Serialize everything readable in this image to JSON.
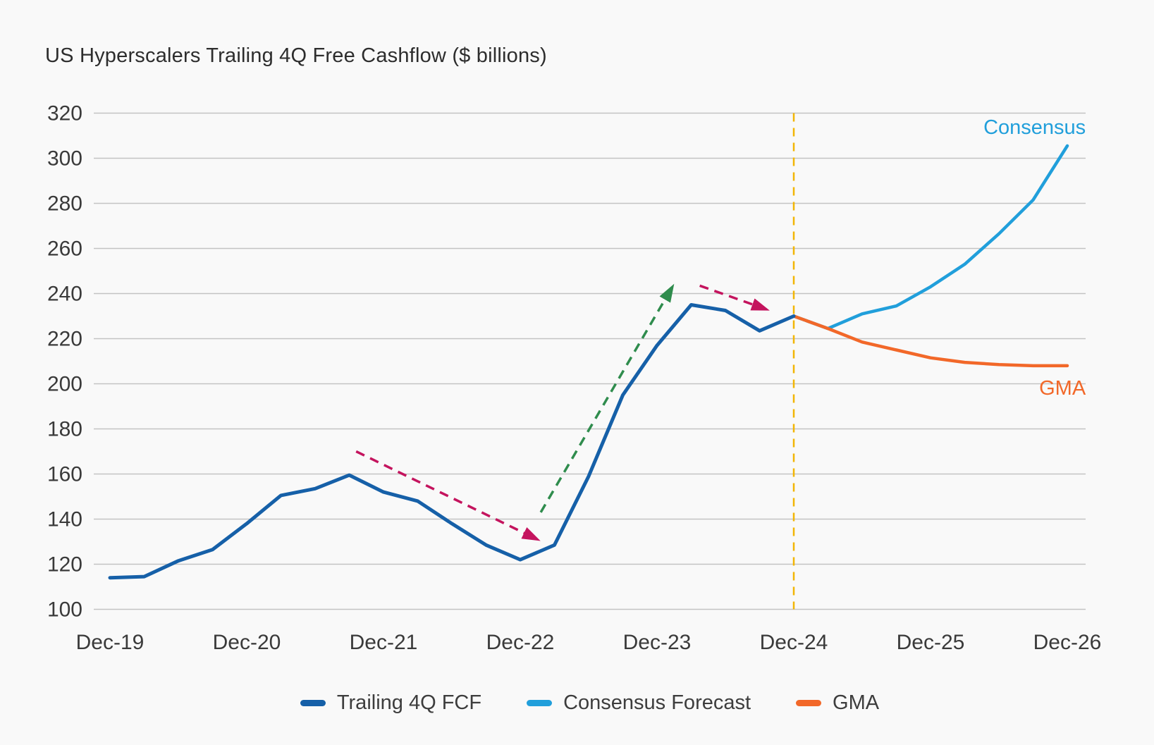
{
  "title": "US Hyperscalers Trailing 4Q Free Cashflow ($ billions)",
  "colors": {
    "background": "#f9f9f9",
    "gridline": "#c3c3c3",
    "axis_text": "#3a3a3a",
    "title_text": "#2d2d2d",
    "trailing_fcf": "#1660a8",
    "consensus": "#219fdb",
    "gma": "#f26829",
    "forecast_divider": "#f2b505",
    "arrow_down": "#c4145e",
    "arrow_up": "#2f8c4d"
  },
  "legend": {
    "items": [
      {
        "label": "Trailing 4Q FCF",
        "color_key": "trailing_fcf"
      },
      {
        "label": "Consensus Forecast",
        "color_key": "consensus"
      },
      {
        "label": "GMA",
        "color_key": "gma"
      }
    ]
  },
  "chart_data": {
    "type": "line",
    "title": "US Hyperscalers Trailing 4Q Free Cashflow ($ billions)",
    "xlabel": "",
    "ylabel": "$ billions",
    "ylim": [
      100,
      320
    ],
    "y_ticks": [
      100,
      120,
      140,
      160,
      180,
      200,
      220,
      240,
      260,
      280,
      300,
      320
    ],
    "x_tick_labels": [
      "Dec-19",
      "Dec-20",
      "Dec-21",
      "Dec-22",
      "Dec-23",
      "Dec-24",
      "Dec-25",
      "Dec-26"
    ],
    "quarters_per_tick": 4,
    "grid": "horizontal",
    "legend_position": "bottom",
    "series": [
      {
        "name": "Trailing 4Q FCF",
        "color_key": "trailing_fcf",
        "style": "solid",
        "stroke_width": 5,
        "start_quarter": 0,
        "quarters": [
          "Dec-19",
          "Mar-20",
          "Jun-20",
          "Sep-20",
          "Dec-20",
          "Mar-21",
          "Jun-21",
          "Sep-21",
          "Dec-21",
          "Mar-22",
          "Jun-22",
          "Sep-22",
          "Dec-22",
          "Mar-23",
          "Jun-23",
          "Sep-23",
          "Dec-23",
          "Mar-24",
          "Jun-24",
          "Sep-24",
          "Dec-24"
        ],
        "values": [
          114,
          114.5,
          121.5,
          126.5,
          138,
          150.5,
          153.5,
          159.5,
          152,
          148,
          138,
          128.5,
          122,
          128.5,
          159,
          195,
          217,
          235,
          232.5,
          223.5,
          230
        ]
      },
      {
        "name": "Consensus Forecast",
        "color_key": "consensus",
        "style": "solid",
        "stroke_width": 4.5,
        "start_quarter": 20,
        "quarters": [
          "Dec-24",
          "Mar-25",
          "Jun-25",
          "Sep-25",
          "Dec-25",
          "Mar-26",
          "Jun-26",
          "Sep-26",
          "Dec-26"
        ],
        "values": [
          230,
          224.5,
          231,
          234.5,
          243,
          253,
          266.5,
          281.5,
          305.5
        ]
      },
      {
        "name": "GMA",
        "color_key": "gma",
        "style": "solid",
        "stroke_width": 4.5,
        "start_quarter": 20,
        "quarters": [
          "Dec-24",
          "Mar-25",
          "Jun-25",
          "Sep-25",
          "Dec-25",
          "Mar-26",
          "Jun-26",
          "Sep-26",
          "Dec-26"
        ],
        "values": [
          230,
          224.5,
          218.5,
          215,
          211.5,
          209.5,
          208.5,
          208,
          208
        ]
      }
    ],
    "forecast_divider": {
      "quarter": 20,
      "label": "Dec-24",
      "style": "dashed"
    },
    "line_labels": [
      {
        "text": "Consensus",
        "color_key": "consensus",
        "anchor_quarter": 28.54,
        "value": 310.8,
        "align": "end"
      },
      {
        "text": "GMA",
        "color_key": "gma",
        "anchor_quarter": 28.54,
        "value": 195.2,
        "align": "end"
      }
    ],
    "arrows": [
      {
        "name": "decline-2022-arrow",
        "color_key": "arrow_down",
        "from_quarter": 7.2,
        "from_value": 170,
        "to_quarter": 12.5,
        "to_value": 131
      },
      {
        "name": "rebound-2023-arrow",
        "color_key": "arrow_up",
        "from_quarter": 12.6,
        "from_value": 143,
        "to_quarter": 16.45,
        "to_value": 243
      },
      {
        "name": "rollover-2024-arrow",
        "color_key": "arrow_down",
        "from_quarter": 17.25,
        "from_value": 243.5,
        "to_quarter": 19.2,
        "to_value": 233
      }
    ]
  }
}
